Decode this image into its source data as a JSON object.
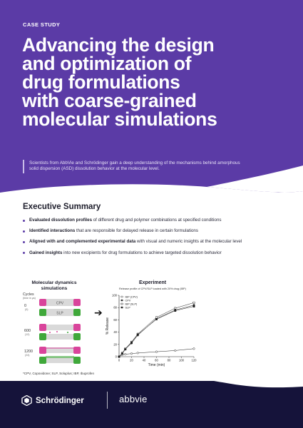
{
  "hero": {
    "label": "CASE STUDY",
    "title_lines": [
      "Advancing the design",
      "and optimization of",
      "drug formulations",
      "with coarse-grained",
      "molecular simulations"
    ],
    "subtitle_lines": [
      "Scientists from AbbVie and Schrödinger gain a deep understanding of the mechanisms behind amorphous",
      "solid dispersion (ASD) dissolution behavior at the molecular level."
    ]
  },
  "summary": {
    "title": "Executive Summary",
    "bullets": [
      {
        "bold": "Evaluated dissolution profiles",
        "rest": " of different drug and polymer combinations at specified conditions"
      },
      {
        "bold": "Identified interactions",
        "rest": " that are responsible for delayed release in certain formulations"
      },
      {
        "bold": "Aligned with and complemented experimental data",
        "rest": " with visual and numeric insights at the molecular level"
      },
      {
        "bold": "Gained insights",
        "rest": " into new excipients for drug formulations to achieve targeted dissolution behavior"
      }
    ]
  },
  "md": {
    "title_lines": [
      "Molecular dynamics",
      "simulations"
    ],
    "cycles_label": "Cycles",
    "cycles_sub": "(time in μs)",
    "cycles": [
      {
        "num": "0",
        "sub": "(0)"
      },
      {
        "num": "600",
        "sub": "(12)"
      },
      {
        "num": "1200",
        "sub": "(24)"
      }
    ],
    "layer_labels": {
      "top": "CPV",
      "bottom": "SLP"
    },
    "colors": {
      "cpv": "#d9449b",
      "slp": "#3fa83a"
    }
  },
  "experiment": {
    "title": "Experiment",
    "subtitle": "Release profile of CPV/SLP loaded with 20% drug (IBP)"
  },
  "chart_data": {
    "type": "line",
    "title": "Release profile of CPV/SLP loaded with 20% drug (IBP)",
    "xlabel": "Time (min)",
    "ylabel": "% Release",
    "xlim": [
      0,
      120
    ],
    "ylim": [
      0,
      100
    ],
    "xticks": [
      "0",
      "20",
      "40",
      "60",
      "80",
      "100",
      "120"
    ],
    "yticks": [
      "0",
      "20",
      "40",
      "60",
      "80",
      "100"
    ],
    "legend_position": "top-left",
    "series": [
      {
        "name": "IBP (CPV)",
        "marker": "open-circle",
        "x": [
          0,
          5,
          10,
          20,
          30,
          60,
          90,
          120
        ],
        "y": [
          0,
          3,
          4,
          5,
          6,
          8,
          10,
          13
        ]
      },
      {
        "name": "CPV",
        "marker": "filled-circle",
        "x": [
          0,
          5,
          10,
          20,
          30,
          60,
          90,
          120
        ],
        "y": [
          0,
          5,
          12,
          22,
          35,
          62,
          76,
          84
        ]
      },
      {
        "name": "IBP (SLP)",
        "marker": "open-square",
        "x": [
          0,
          5,
          10,
          20,
          30,
          60,
          90,
          120
        ],
        "y": [
          0,
          6,
          13,
          24,
          37,
          64,
          79,
          88
        ]
      },
      {
        "name": "SLP",
        "marker": "filled-square",
        "x": [
          0,
          5,
          10,
          20,
          30,
          60,
          90,
          120
        ],
        "y": [
          0,
          5,
          12,
          23,
          36,
          61,
          75,
          82
        ]
      }
    ]
  },
  "footnote": "*CPV, Copovidone; SLP, Soluplus; IBP, Ibuprofen",
  "footer": {
    "logo_left": "Schrödinger",
    "logo_right": "abbvie",
    "bg": "#15133a"
  },
  "colors": {
    "accent": "#5b3ba6"
  }
}
